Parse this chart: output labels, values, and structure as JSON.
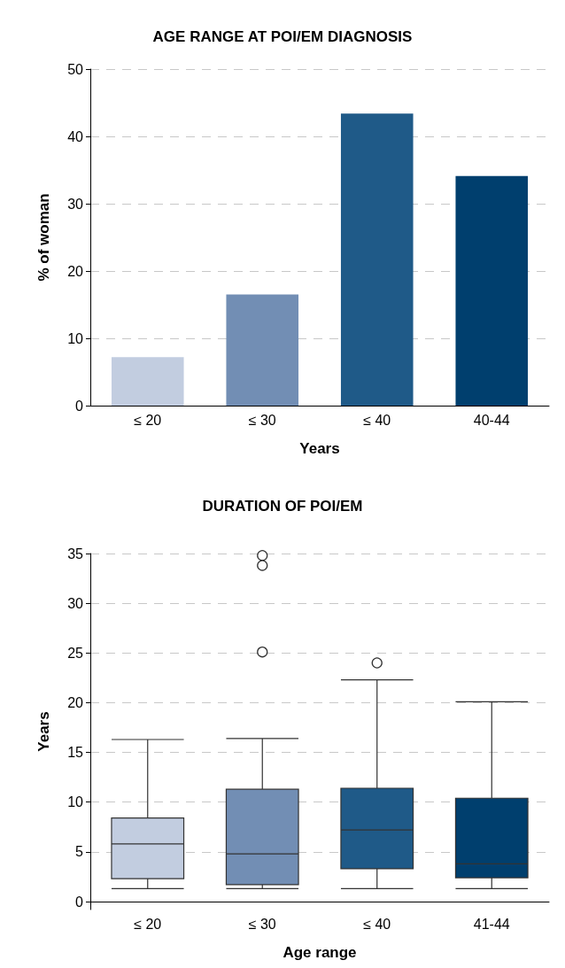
{
  "chart_data": [
    {
      "type": "bar",
      "title": "AGE RANGE AT POI/EM DIAGNOSIS",
      "xlabel": "Years",
      "ylabel": "% of woman",
      "categories": [
        "≤ 20",
        "≤ 30",
        "≤ 40",
        "40-44"
      ],
      "values": [
        7.2,
        16.5,
        43.4,
        34.1
      ],
      "colors": [
        "#c2cde0",
        "#728eb4",
        "#1f5a88",
        "#003f6e"
      ],
      "ylim": [
        0,
        50
      ],
      "yticks": [
        0,
        10,
        20,
        30,
        40,
        50
      ],
      "grid": "y"
    },
    {
      "type": "box",
      "title": "DURATION OF POI/EM",
      "xlabel": "Age range",
      "ylabel": "Years",
      "categories": [
        "≤ 20",
        "≤ 30",
        "≤ 40",
        "41-44"
      ],
      "colors": [
        "#c2cde0",
        "#728eb4",
        "#1f5a88",
        "#003f6e"
      ],
      "boxes": [
        {
          "low": 1.3,
          "q1": 2.3,
          "median": 5.8,
          "q3": 8.4,
          "high": 16.3
        },
        {
          "low": 1.3,
          "q1": 1.7,
          "median": 4.8,
          "q3": 11.3,
          "high": 16.4,
          "outliers": [
            34.8,
            33.8,
            25.1
          ]
        },
        {
          "low": 1.3,
          "q1": 3.3,
          "median": 7.2,
          "q3": 11.4,
          "high": 22.3,
          "outliers": [
            24.0
          ]
        },
        {
          "low": 1.3,
          "q1": 2.4,
          "median": 3.8,
          "q3": 10.4,
          "high": 20.1
        }
      ],
      "ylim": [
        -0.8,
        35
      ],
      "yticks": [
        0,
        5,
        10,
        15,
        20,
        25,
        30,
        35
      ],
      "grid": "y"
    }
  ]
}
